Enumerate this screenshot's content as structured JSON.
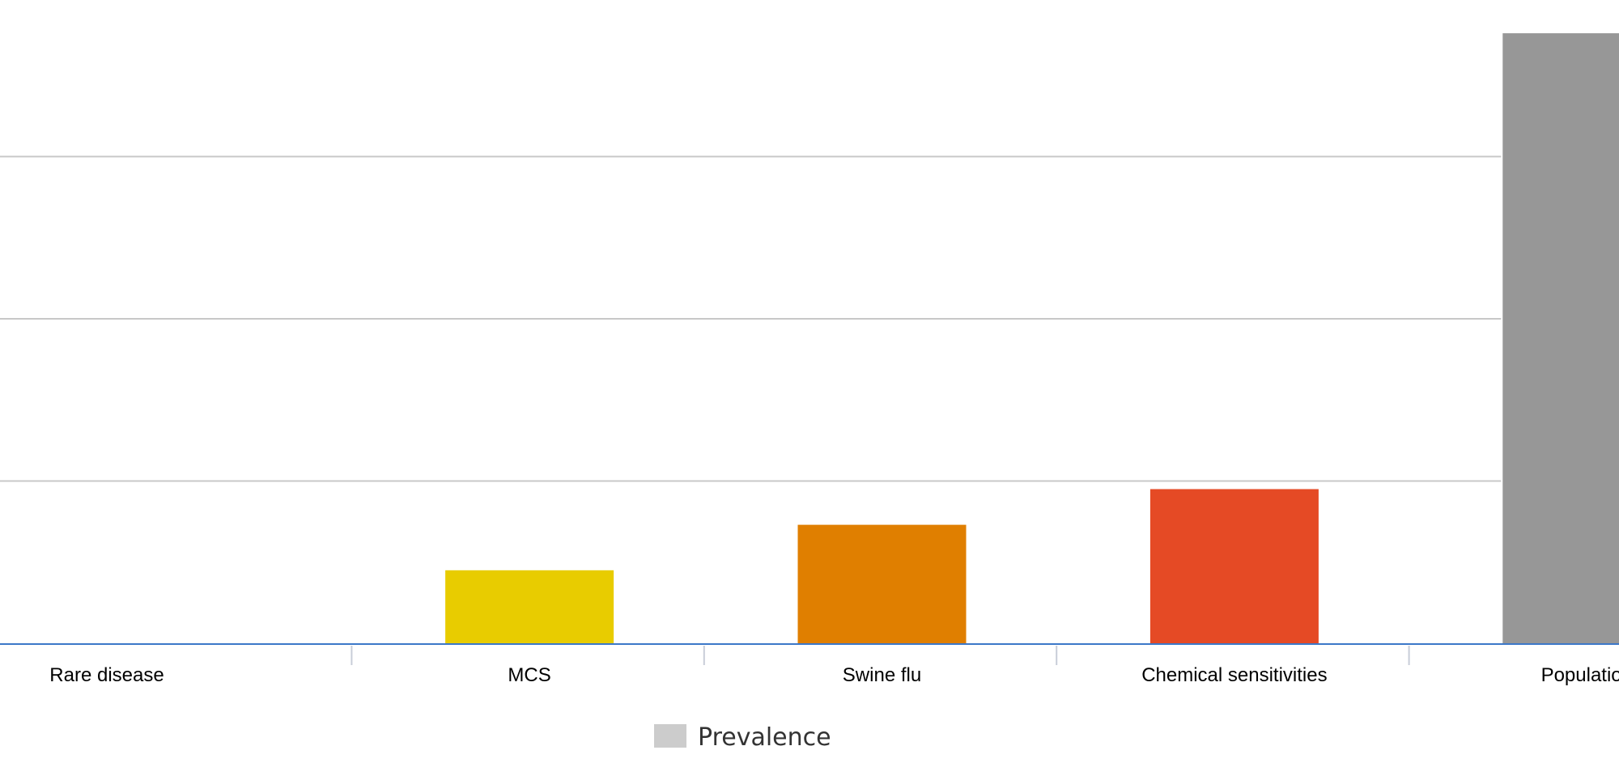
{
  "chart_data": {
    "type": "bar",
    "categories": [
      "Rare disease",
      "MCS",
      "Swine flu",
      "Chemical sensitivities",
      "Population"
    ],
    "values": [
      0,
      0.45,
      0.73,
      0.95,
      3.76
    ],
    "ylim": [
      0,
      4
    ],
    "grid": true,
    "colors": [
      "#e8cc00",
      "#e8cc00",
      "#e07f00",
      "#e54a25",
      "#979797"
    ],
    "legend": {
      "position": "bottom",
      "entries": [
        {
          "label": "Prevalence",
          "color": "#cccccc"
        }
      ]
    }
  }
}
